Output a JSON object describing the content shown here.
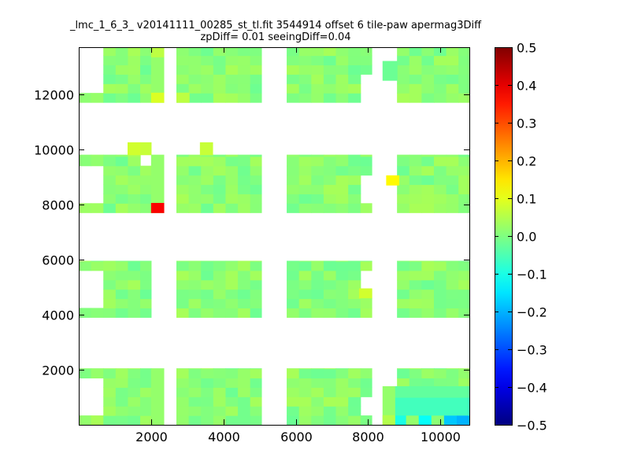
{
  "chart_data": {
    "type": "heatmap",
    "title_lines": [
      "_lmc_1_6_3_ v20141111_00285_st_tl.fit 3544914 offset 6 tile-paw apermag3Diff",
      "zpDiff= 0.01 seeingDiff=0.04"
    ],
    "xlabel": "",
    "ylabel": "",
    "xlim": [
      0,
      10800
    ],
    "ylim": [
      0,
      13700
    ],
    "xticks": [
      2000,
      4000,
      6000,
      8000,
      10000
    ],
    "xtick_labels": [
      "2000",
      "4000",
      "6000",
      "8000",
      "10000"
    ],
    "yticks": [
      2000,
      4000,
      6000,
      8000,
      10000,
      12000
    ],
    "ytick_labels": [
      "2000",
      "4000",
      "6000",
      "8000",
      "10000",
      "12000"
    ],
    "colorbar": {
      "colormap": "jet",
      "vmin": -0.5,
      "vmax": 0.5,
      "ticks": [
        0.5,
        0.4,
        0.3,
        0.2,
        0.1,
        0.0,
        -0.1,
        -0.2,
        -0.3,
        -0.4,
        -0.5
      ],
      "tick_labels": [
        "0.5",
        "0.4",
        "0.3",
        "0.2",
        "0.1",
        "0.0",
        "−0.1",
        "−0.2",
        "−0.3",
        "−0.4",
        "−0.5"
      ]
    },
    "grid": false,
    "tiles": {
      "cell_size": 340,
      "columns": [
        {
          "x0": 0,
          "x1": 2000
        },
        {
          "x0": 2700,
          "x1": 5050
        },
        {
          "x0": 5750,
          "x1": 8100
        },
        {
          "x0": 8800,
          "x1": 10800
        }
      ],
      "rows": [
        {
          "y0": 0,
          "y1": 2050
        },
        {
          "y0": 3900,
          "y1": 5950
        },
        {
          "y0": 7700,
          "y1": 9800
        },
        {
          "y0": 11700,
          "y1": 13700
        }
      ],
      "background_value": 0.01,
      "value_jitter": 0.03,
      "gaps": [
        {
          "x0": 0,
          "x1": 650,
          "y0": 300,
          "y1": 1750
        },
        {
          "x0": 0,
          "x1": 650,
          "y0": 4200,
          "y1": 5650
        },
        {
          "x0": 0,
          "x1": 650,
          "y0": 8000,
          "y1": 9500
        },
        {
          "x0": 0,
          "x1": 650,
          "y0": 12000,
          "y1": 13700
        },
        {
          "x0": 1650,
          "x1": 2000,
          "y0": 9550,
          "y1": 9800
        },
        {
          "x0": 2350,
          "x1": 2700,
          "y0": 13100,
          "y1": 13700
        },
        {
          "x0": 7750,
          "x1": 8100,
          "y0": 11700,
          "y1": 12700
        },
        {
          "x0": 7750,
          "x1": 8100,
          "y0": 300,
          "y1": 1000
        },
        {
          "x0": 7750,
          "x1": 8100,
          "y0": 4900,
          "y1": 5650
        },
        {
          "x0": 7750,
          "x1": 8100,
          "y0": 8000,
          "y1": 8900
        },
        {
          "x0": 8800,
          "x1": 8950,
          "y0": 4200,
          "y1": 5650
        },
        {
          "x0": 8800,
          "x1": 8900,
          "y0": 8000,
          "y1": 9500
        }
      ],
      "extra_cells": [
        {
          "x0": 1350,
          "x1": 1700,
          "y0": 9800,
          "y1": 10250,
          "v": 0.08
        },
        {
          "x0": 1700,
          "x1": 2000,
          "y0": 9800,
          "y1": 10250,
          "v": 0.07
        },
        {
          "x0": 3350,
          "x1": 3700,
          "y0": 9800,
          "y1": 10250,
          "v": 0.07
        },
        {
          "x0": 2000,
          "x1": 2350,
          "y0": 7700,
          "y1": 9800,
          "v": 0.02
        },
        {
          "x0": 2000,
          "x1": 2350,
          "y0": 11700,
          "y1": 13700,
          "v": 0.02
        },
        {
          "x0": 2000,
          "x1": 2350,
          "y0": 0,
          "y1": 2050,
          "v": 0.02
        },
        {
          "x0": 8400,
          "x1": 8800,
          "y0": 0,
          "y1": 1400,
          "v": 0.02
        },
        {
          "x0": 8400,
          "x1": 8800,
          "y0": 12500,
          "y1": 13200,
          "v": -0.02
        }
      ],
      "highlights": [
        {
          "x0": 2000,
          "x1": 2350,
          "y0": 7700,
          "y1": 8050,
          "v": 0.38
        },
        {
          "x0": 8500,
          "x1": 8850,
          "y0": 8700,
          "y1": 9050,
          "v": 0.13
        },
        {
          "x0": 7750,
          "x1": 8100,
          "y0": 4600,
          "y1": 4950,
          "v": 0.08
        },
        {
          "x0": 2000,
          "x1": 2350,
          "y0": 11700,
          "y1": 12050,
          "v": 0.09
        },
        {
          "x0": 2700,
          "x1": 3050,
          "y0": 11700,
          "y1": 12050,
          "v": 0.06
        },
        {
          "x0": 2000,
          "x1": 2350,
          "y0": 13350,
          "y1": 13700,
          "v": 0.06
        },
        {
          "x0": 8400,
          "x1": 8750,
          "y0": 0,
          "y1": 350,
          "v": 0.05
        },
        {
          "x0": 8750,
          "x1": 9050,
          "y0": 0,
          "y1": 350,
          "v": -0.1
        },
        {
          "x0": 9050,
          "x1": 9400,
          "y0": 0,
          "y1": 350,
          "v": 0.02
        },
        {
          "x0": 9400,
          "x1": 9750,
          "y0": 0,
          "y1": 350,
          "v": -0.12
        },
        {
          "x0": 9750,
          "x1": 10100,
          "y0": 0,
          "y1": 350,
          "v": 0.01
        },
        {
          "x0": 10100,
          "x1": 10450,
          "y0": 0,
          "y1": 350,
          "v": -0.18
        },
        {
          "x0": 10450,
          "x1": 10800,
          "y0": 0,
          "y1": 700,
          "v": -0.2
        },
        {
          "x0": 8750,
          "x1": 10800,
          "y0": 350,
          "y1": 1000,
          "v": -0.06
        },
        {
          "x0": 8750,
          "x1": 10800,
          "y0": 1000,
          "y1": 1400,
          "v": -0.03
        }
      ]
    }
  }
}
